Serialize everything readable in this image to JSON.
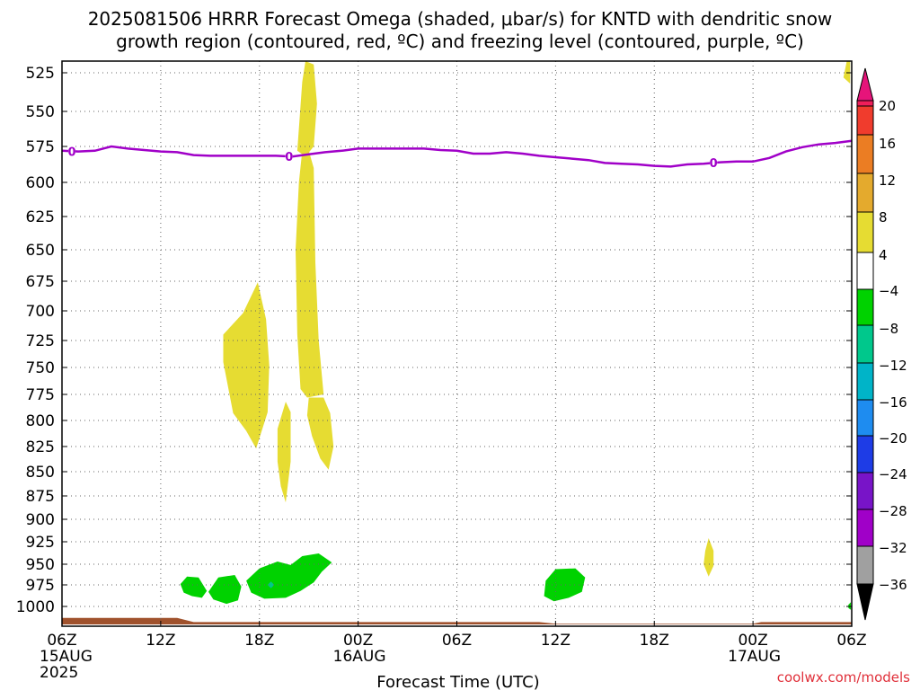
{
  "title_line1": "2025081506 HRRR Forecast Omega (shaded, μbar/s) for KNTD with dendritic snow",
  "title_line2": "growth region (contoured, red, ºC) and freezing level (contoured, purple, ºC)",
  "credit": "coolwx.com/models",
  "chart_data": {
    "type": "contour",
    "title": "2025081506 HRRR Forecast Omega (shaded, μbar/s) for KNTD with dendritic snow growth region (contoured, red, ºC) and freezing level (contoured, purple, ºC)",
    "xlabel": "Forecast Time (UTC)",
    "ylabel": "",
    "x_units": "forecast hours from 2025-08-15 06Z",
    "xlim": [
      0,
      48
    ],
    "y_units": "pressure (hPa), inverted axis",
    "ylim": [
      1012,
      518
    ],
    "grid": true,
    "x_ticks": [
      {
        "hour": 0,
        "label": "06Z",
        "sub": "15AUG",
        "sub2": "2025"
      },
      {
        "hour": 6,
        "label": "12Z",
        "sub": "",
        "sub2": ""
      },
      {
        "hour": 12,
        "label": "18Z",
        "sub": "",
        "sub2": ""
      },
      {
        "hour": 18,
        "label": "00Z",
        "sub": "16AUG",
        "sub2": ""
      },
      {
        "hour": 24,
        "label": "06Z",
        "sub": "",
        "sub2": ""
      },
      {
        "hour": 30,
        "label": "12Z",
        "sub": "",
        "sub2": ""
      },
      {
        "hour": 36,
        "label": "18Z",
        "sub": "",
        "sub2": ""
      },
      {
        "hour": 42,
        "label": "00Z",
        "sub": "17AUG",
        "sub2": ""
      },
      {
        "hour": 48,
        "label": "06Z",
        "sub": "",
        "sub2": ""
      }
    ],
    "y_ticks": [
      {
        "p": 525,
        "label": "525"
      },
      {
        "p": 550,
        "label": "550"
      },
      {
        "p": 575,
        "label": "575"
      },
      {
        "p": 600,
        "label": "600"
      },
      {
        "p": 625,
        "label": "625"
      },
      {
        "p": 650,
        "label": "650"
      },
      {
        "p": 675,
        "label": "675"
      },
      {
        "p": 700,
        "label": "700"
      },
      {
        "p": 725,
        "label": "725"
      },
      {
        "p": 750,
        "label": "750"
      },
      {
        "p": 775,
        "label": "775"
      },
      {
        "p": 800,
        "label": "800"
      },
      {
        "p": 825,
        "label": "825"
      },
      {
        "p": 850,
        "label": "850"
      },
      {
        "p": 875,
        "label": "875"
      },
      {
        "p": 900,
        "label": "900"
      },
      {
        "p": 925,
        "label": "925"
      },
      {
        "p": 950,
        "label": "950"
      },
      {
        "p": 975,
        "label": "975"
      },
      {
        "p": 1000,
        "label": "1000"
      }
    ],
    "colorbar": {
      "levels": [
        {
          "value": "20",
          "color": "#f01e5a"
        },
        {
          "value": "16",
          "color": "#f03c2d"
        },
        {
          "value": "12",
          "color": "#eb7d23"
        },
        {
          "value": "8",
          "color": "#e4aa2d"
        },
        {
          "value": "4",
          "color": "#e6dc32"
        },
        {
          "value": "−4",
          "color": "#ffffff"
        },
        {
          "value": "−8",
          "color": "#00d200"
        },
        {
          "value": "−12",
          "color": "#00c88c"
        },
        {
          "value": "−16",
          "color": "#00b4c8"
        },
        {
          "value": "−20",
          "color": "#1e8cf0"
        },
        {
          "value": "−24",
          "color": "#1e3ce6"
        },
        {
          "value": "−28",
          "color": "#7814c8"
        },
        {
          "value": "−32",
          "color": "#a000c8"
        },
        {
          "value": "−36",
          "color": "#a0a0a0"
        }
      ],
      "top_arrow_color": "#e6147a",
      "bottom_arrow_color": "#000000"
    },
    "freezing_level": {
      "name": "0",
      "color": "#a000c8",
      "label_hours": [
        0.6,
        13.8,
        39.6
      ],
      "points": [
        [
          0,
          578
        ],
        [
          1,
          578.5
        ],
        [
          2,
          578
        ],
        [
          3,
          575
        ],
        [
          4,
          576.5
        ],
        [
          5,
          577.5
        ],
        [
          6,
          578.5
        ],
        [
          7,
          579
        ],
        [
          8,
          581
        ],
        [
          9,
          581.5
        ],
        [
          10,
          581.5
        ],
        [
          11,
          581.5
        ],
        [
          12,
          581.5
        ],
        [
          13,
          581.5
        ],
        [
          14,
          582
        ],
        [
          15,
          580.5
        ],
        [
          16,
          579
        ],
        [
          17,
          578
        ],
        [
          18,
          576.5
        ],
        [
          19,
          576.5
        ],
        [
          20,
          576.5
        ],
        [
          21,
          576.5
        ],
        [
          22,
          576.5
        ],
        [
          23,
          577.5
        ],
        [
          24,
          578
        ],
        [
          25,
          580
        ],
        [
          26,
          580
        ],
        [
          27,
          579
        ],
        [
          28,
          580
        ],
        [
          29,
          581.5
        ],
        [
          30,
          582.5
        ],
        [
          31,
          583.5
        ],
        [
          32,
          584.5
        ],
        [
          33,
          586.5
        ],
        [
          34,
          587
        ],
        [
          35,
          587.5
        ],
        [
          36,
          588.5
        ],
        [
          37,
          589
        ],
        [
          38,
          587.5
        ],
        [
          39,
          587
        ],
        [
          40,
          586
        ],
        [
          41,
          585.5
        ],
        [
          42,
          585.5
        ],
        [
          43,
          583
        ],
        [
          44,
          578.5
        ],
        [
          45,
          575.5
        ],
        [
          46,
          573.5
        ],
        [
          47,
          572.5
        ],
        [
          48,
          571
        ]
      ]
    },
    "terrain_surface_hpa": [
      [
        0,
        1007
      ],
      [
        7,
        1007
      ],
      [
        8,
        1009.5
      ],
      [
        29,
        1009.5
      ],
      [
        30,
        1010.5
      ],
      [
        42,
        1010.5
      ],
      [
        42.5,
        1009.5
      ],
      [
        48,
        1009.5
      ]
    ],
    "shaded_regions": [
      {
        "level": "4",
        "color": "#e6dc32",
        "points": [
          [
            9.8,
            720
          ],
          [
            11,
            702
          ],
          [
            11.9,
            676
          ],
          [
            12.4,
            707
          ],
          [
            12.6,
            748
          ],
          [
            12.5,
            792
          ],
          [
            11.8,
            827
          ],
          [
            11.2,
            810
          ],
          [
            10.4,
            793
          ],
          [
            9.8,
            745
          ]
        ]
      },
      {
        "level": "4",
        "color": "#e6dc32",
        "points": [
          [
            14.3,
            578
          ],
          [
            14.6,
            531
          ],
          [
            14.8,
            518
          ],
          [
            15.3,
            520
          ],
          [
            15.5,
            545
          ],
          [
            15.3,
            575
          ],
          [
            14.8,
            582
          ]
        ]
      },
      {
        "level": "4",
        "color": "#e6dc32",
        "points": [
          [
            14.6,
            578
          ],
          [
            15.0,
            578
          ],
          [
            15.3,
            590
          ],
          [
            15.4,
            660
          ],
          [
            15.6,
            725
          ],
          [
            15.9,
            775
          ],
          [
            14.9,
            778
          ],
          [
            14.5,
            770
          ],
          [
            14.3,
            720
          ],
          [
            14.2,
            650
          ],
          [
            14.4,
            600
          ]
        ]
      },
      {
        "level": "4",
        "color": "#e6dc32",
        "points": [
          [
            15.0,
            778
          ],
          [
            15.9,
            778
          ],
          [
            16.3,
            793
          ],
          [
            16.5,
            825
          ],
          [
            16.2,
            848
          ],
          [
            15.7,
            837
          ],
          [
            15.2,
            815
          ],
          [
            14.9,
            795
          ]
        ]
      },
      {
        "level": "4",
        "color": "#e6dc32",
        "points": [
          [
            13.1,
            808
          ],
          [
            13.6,
            782
          ],
          [
            13.9,
            792
          ],
          [
            13.9,
            840
          ],
          [
            13.6,
            882
          ],
          [
            13.3,
            865
          ],
          [
            13.1,
            840
          ]
        ]
      },
      {
        "level": "4",
        "color": "#e6dc32",
        "points": [
          [
            39.1,
            935
          ],
          [
            39.3,
            921
          ],
          [
            39.6,
            935
          ],
          [
            39.6,
            952
          ],
          [
            39.3,
            965
          ],
          [
            39.0,
            950
          ]
        ]
      },
      {
        "level": "4",
        "color": "#e6dc32",
        "points": [
          [
            47.5,
            528
          ],
          [
            47.7,
            518
          ],
          [
            47.9,
            518
          ],
          [
            47.9,
            532
          ]
        ]
      },
      {
        "level": "-4",
        "color": "#00d200",
        "points": [
          [
            7.2,
            974
          ],
          [
            7.6,
            965
          ],
          [
            8.3,
            966
          ],
          [
            8.8,
            982
          ],
          [
            8.5,
            990
          ],
          [
            7.9,
            988
          ],
          [
            7.4,
            984
          ]
        ]
      },
      {
        "level": "-4",
        "color": "#00d200",
        "points": [
          [
            8.9,
            983
          ],
          [
            9.5,
            966
          ],
          [
            10.5,
            963
          ],
          [
            10.9,
            977
          ],
          [
            10.7,
            993
          ],
          [
            10.0,
            997
          ],
          [
            9.2,
            992
          ]
        ]
      },
      {
        "level": "-4",
        "color": "#00d200",
        "points": [
          [
            11.2,
            970
          ],
          [
            12.0,
            955
          ],
          [
            13.1,
            947
          ],
          [
            13.9,
            951
          ],
          [
            14.6,
            941
          ],
          [
            15.6,
            938
          ],
          [
            16.4,
            948
          ],
          [
            15.8,
            959
          ],
          [
            15.3,
            972
          ],
          [
            14.5,
            982
          ],
          [
            13.6,
            990
          ],
          [
            12.3,
            991
          ],
          [
            11.5,
            984
          ]
        ]
      },
      {
        "level": "-8",
        "color": "#00c88c",
        "points": [
          [
            12.5,
            975
          ],
          [
            12.7,
            971
          ],
          [
            12.9,
            975
          ],
          [
            12.7,
            979
          ]
        ]
      },
      {
        "level": "-4",
        "color": "#00d200",
        "points": [
          [
            29.4,
            970
          ],
          [
            30.0,
            956
          ],
          [
            31.2,
            955
          ],
          [
            31.8,
            966
          ],
          [
            31.6,
            983
          ],
          [
            30.8,
            990
          ],
          [
            29.9,
            994
          ],
          [
            29.3,
            988
          ]
        ]
      },
      {
        "level": "-4",
        "color": "#00d200",
        "points": [
          [
            47.8,
            998
          ],
          [
            47.95,
            995
          ],
          [
            47.95,
            1002
          ],
          [
            47.8,
            1001
          ]
        ]
      }
    ]
  }
}
